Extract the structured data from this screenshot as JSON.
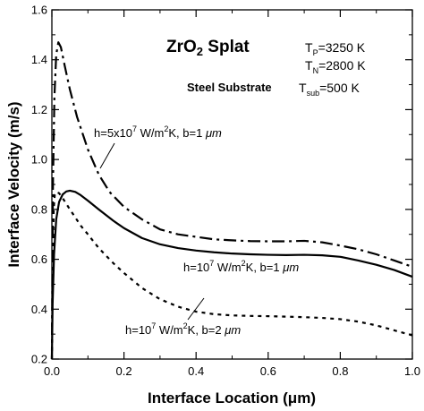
{
  "chart_data": {
    "type": "line",
    "title": "",
    "xlabel": "Interface Location (μm)",
    "ylabel": "Interface Velocity (m/s)",
    "xlim": [
      0,
      1.0
    ],
    "ylim": [
      0.2,
      1.6
    ],
    "x_ticks": [
      "0.0",
      "0.2",
      "0.4",
      "0.6",
      "0.8",
      "1.0"
    ],
    "y_ticks": [
      "0.2",
      "0.4",
      "0.6",
      "0.8",
      "1.0",
      "1.2",
      "1.4",
      "1.6"
    ],
    "grid": false,
    "series": [
      {
        "label": "h=5x10^7 W/m²K, b=1 μm",
        "style": "dash-dot",
        "points": [
          [
            0.0,
            0.2
          ],
          [
            0.003,
            0.9
          ],
          [
            0.007,
            1.25
          ],
          [
            0.012,
            1.42
          ],
          [
            0.018,
            1.47
          ],
          [
            0.025,
            1.45
          ],
          [
            0.035,
            1.38
          ],
          [
            0.05,
            1.28
          ],
          [
            0.07,
            1.17
          ],
          [
            0.1,
            1.04
          ],
          [
            0.13,
            0.94
          ],
          [
            0.16,
            0.87
          ],
          [
            0.2,
            0.81
          ],
          [
            0.25,
            0.76
          ],
          [
            0.3,
            0.72
          ],
          [
            0.35,
            0.7
          ],
          [
            0.4,
            0.69
          ],
          [
            0.45,
            0.68
          ],
          [
            0.5,
            0.676
          ],
          [
            0.55,
            0.673
          ],
          [
            0.6,
            0.672
          ],
          [
            0.65,
            0.672
          ],
          [
            0.7,
            0.674
          ],
          [
            0.75,
            0.668
          ],
          [
            0.8,
            0.655
          ],
          [
            0.85,
            0.64
          ],
          [
            0.9,
            0.62
          ],
          [
            0.95,
            0.595
          ],
          [
            1.0,
            0.57
          ]
        ]
      },
      {
        "label": "h=10^7 W/m²K, b=1 μm",
        "style": "solid",
        "points": [
          [
            0.0,
            0.2
          ],
          [
            0.002,
            0.42
          ],
          [
            0.006,
            0.62
          ],
          [
            0.012,
            0.76
          ],
          [
            0.02,
            0.83
          ],
          [
            0.03,
            0.86
          ],
          [
            0.04,
            0.872
          ],
          [
            0.05,
            0.875
          ],
          [
            0.065,
            0.87
          ],
          [
            0.08,
            0.857
          ],
          [
            0.1,
            0.835
          ],
          [
            0.13,
            0.8
          ],
          [
            0.17,
            0.755
          ],
          [
            0.2,
            0.725
          ],
          [
            0.25,
            0.685
          ],
          [
            0.3,
            0.66
          ],
          [
            0.35,
            0.645
          ],
          [
            0.4,
            0.635
          ],
          [
            0.45,
            0.628
          ],
          [
            0.5,
            0.623
          ],
          [
            0.55,
            0.62
          ],
          [
            0.6,
            0.618
          ],
          [
            0.65,
            0.617
          ],
          [
            0.7,
            0.618
          ],
          [
            0.75,
            0.616
          ],
          [
            0.8,
            0.61
          ],
          [
            0.85,
            0.595
          ],
          [
            0.9,
            0.578
          ],
          [
            0.95,
            0.557
          ],
          [
            1.0,
            0.53
          ]
        ]
      },
      {
        "label": "h=10^7 W/m²K, b=2 μm",
        "style": "dotted",
        "points": [
          [
            0.0,
            0.2
          ],
          [
            0.002,
            0.55
          ],
          [
            0.005,
            0.8
          ],
          [
            0.008,
            0.86
          ],
          [
            0.012,
            0.87
          ],
          [
            0.02,
            0.865
          ],
          [
            0.03,
            0.845
          ],
          [
            0.05,
            0.8
          ],
          [
            0.08,
            0.735
          ],
          [
            0.1,
            0.7
          ],
          [
            0.13,
            0.645
          ],
          [
            0.17,
            0.585
          ],
          [
            0.2,
            0.545
          ],
          [
            0.25,
            0.485
          ],
          [
            0.3,
            0.44
          ],
          [
            0.35,
            0.41
          ],
          [
            0.4,
            0.39
          ],
          [
            0.45,
            0.38
          ],
          [
            0.5,
            0.375
          ],
          [
            0.55,
            0.373
          ],
          [
            0.6,
            0.372
          ],
          [
            0.65,
            0.37
          ],
          [
            0.7,
            0.368
          ],
          [
            0.75,
            0.365
          ],
          [
            0.8,
            0.36
          ],
          [
            0.85,
            0.35
          ],
          [
            0.9,
            0.335
          ],
          [
            0.95,
            0.315
          ],
          [
            1.0,
            0.295
          ]
        ]
      }
    ]
  },
  "annotations": {
    "title_main": "ZrO",
    "title_sub": "2",
    "title_rest": " Splat",
    "substrate": "Steel Substrate",
    "tp_base": "T",
    "tp_sub": "P",
    "tp_val": "=3250 K",
    "tn_base": "T",
    "tn_sub": "N",
    "tn_val": "=2800 K",
    "tsub_base": "T",
    "tsub_sub": "sub",
    "tsub_val": "=500 K",
    "series1_label": {
      "prefix": "h=5x10",
      "exp": "7",
      "mid": " W/m",
      "exp2": "2",
      "suffix": "K, b=1 ",
      "unit": "μm"
    },
    "series2_label": {
      "prefix": "h=10",
      "exp": "7",
      "mid": " W/m",
      "exp2": "2",
      "suffix": "K, b=1 ",
      "unit": "μm"
    },
    "series3_label": {
      "prefix": "h=10",
      "exp": "7",
      "mid": " W/m",
      "exp2": "2",
      "suffix": "K, b=2 ",
      "unit": "μm"
    }
  }
}
